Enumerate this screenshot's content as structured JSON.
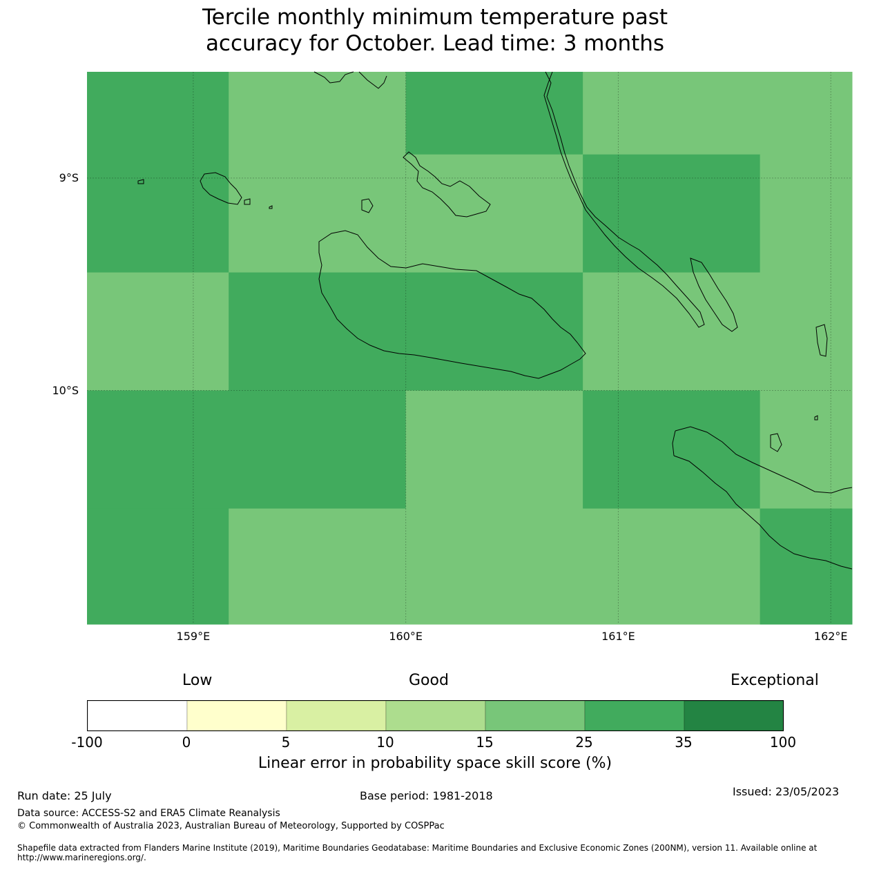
{
  "title": "Tercile monthly minimum temperature past\naccuracy for October. Lead time: 3 months",
  "map": {
    "lon_range": [
      158.5,
      162.1
    ],
    "lat_range": [
      -11.1,
      -8.5
    ],
    "y_ticks": [
      {
        "value": -9,
        "label": "9°S"
      },
      {
        "value": -10,
        "label": "10°S"
      }
    ],
    "x_ticks": [
      {
        "value": 159,
        "label": "159°E"
      },
      {
        "value": 160,
        "label": "160°E"
      },
      {
        "value": 161,
        "label": "161°E"
      },
      {
        "value": 162,
        "label": "162°E"
      }
    ],
    "grid_lon_edges": [
      158.5,
      159.1667,
      160.0,
      160.8333,
      161.6667,
      162.1
    ],
    "grid_lat_edges": [
      -8.5,
      -8.8889,
      -9.4444,
      -10.0,
      -10.5556,
      -11.1
    ],
    "grid_classes": [
      [
        5,
        4,
        5,
        4,
        4
      ],
      [
        5,
        4,
        4,
        5,
        4
      ],
      [
        4,
        5,
        5,
        4,
        4
      ],
      [
        5,
        5,
        4,
        5,
        4
      ],
      [
        5,
        4,
        4,
        4,
        5
      ]
    ]
  },
  "colorbar": {
    "categories": [
      "Low",
      "Good",
      "Exceptional"
    ],
    "colors": [
      "#ffffff",
      "#ffffcc",
      "#d9f0a3",
      "#addd8e",
      "#78c679",
      "#41ab5d",
      "#238443"
    ],
    "tick_labels": [
      "-100",
      "0",
      "5",
      "10",
      "15",
      "25",
      "35",
      "100"
    ],
    "label": "Linear error in probability space skill score (%)"
  },
  "footer": {
    "run_date": "Run date: 25 July",
    "base_period": "Base period: 1981-2018",
    "issued": "Issued: 23/05/2023",
    "data_source": "Data source: ACCESS-S2 and ERA5 Climate Reanalysis",
    "copyright": "© Commonwealth of Australia 2023, Australian Bureau of Meteorology, Supported by COSPPac",
    "shapefile": "Shapefile data extracted from Flanders Marine Institute (2019), Maritime Boundaries Geodatabase: Maritime Boundaries and Exclusive Economic Zones (200NM), version 11. Available online at http://www.marineregions.org/."
  }
}
